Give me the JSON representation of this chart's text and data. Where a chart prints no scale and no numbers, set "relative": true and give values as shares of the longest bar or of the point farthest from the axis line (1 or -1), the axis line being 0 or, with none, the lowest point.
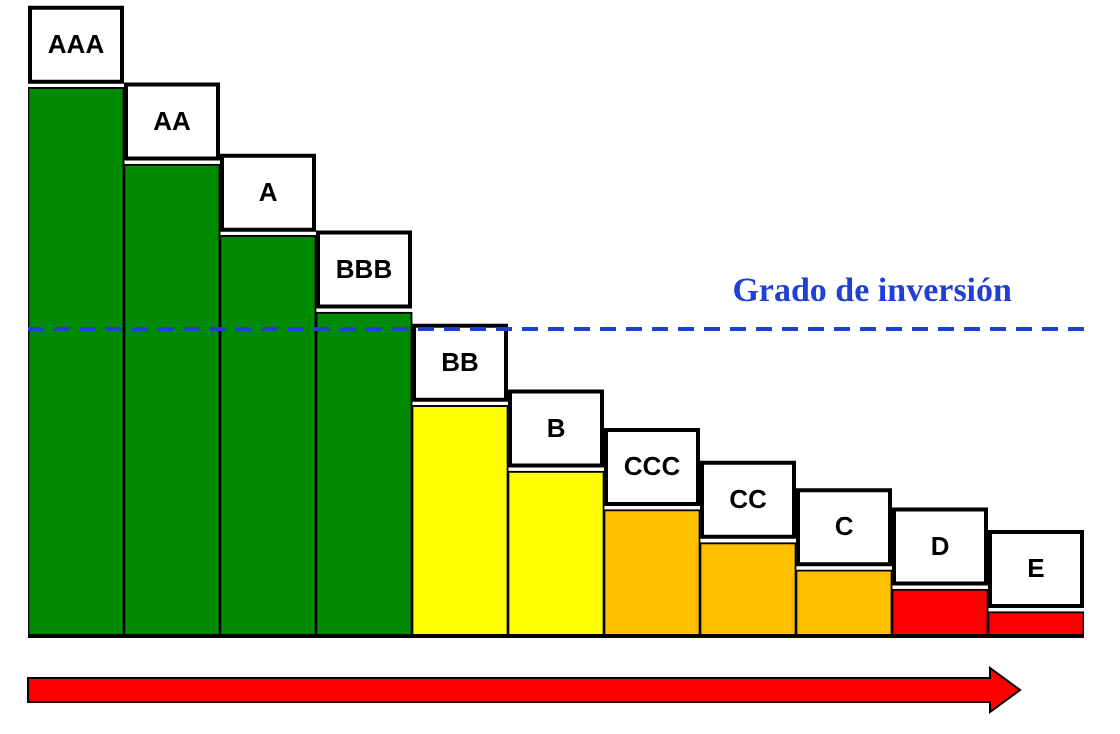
{
  "chart_data": {
    "type": "bar",
    "relative": true,
    "categories": [
      "AAA",
      "AA",
      "A",
      "BBB",
      "BB",
      "B",
      "CCC",
      "CC",
      "C",
      "D",
      "E"
    ],
    "values": [
      1,
      0.86,
      0.73,
      0.59,
      0.42,
      0.3,
      0.23,
      0.17,
      0.12,
      0.085,
      0.044
    ],
    "colors": [
      "#008a00",
      "#008a00",
      "#008a00",
      "#008a00",
      "#ffff00",
      "#ffff00",
      "#ffc000",
      "#ffc000",
      "#ffc000",
      "#ff0000",
      "#ff0000"
    ],
    "ref_lines": [
      {
        "axis": "y",
        "value": 0.56,
        "label": "Grado de inversión",
        "color": "#1f3fd6",
        "line_style": "dashed"
      }
    ],
    "legend": false
  }
}
